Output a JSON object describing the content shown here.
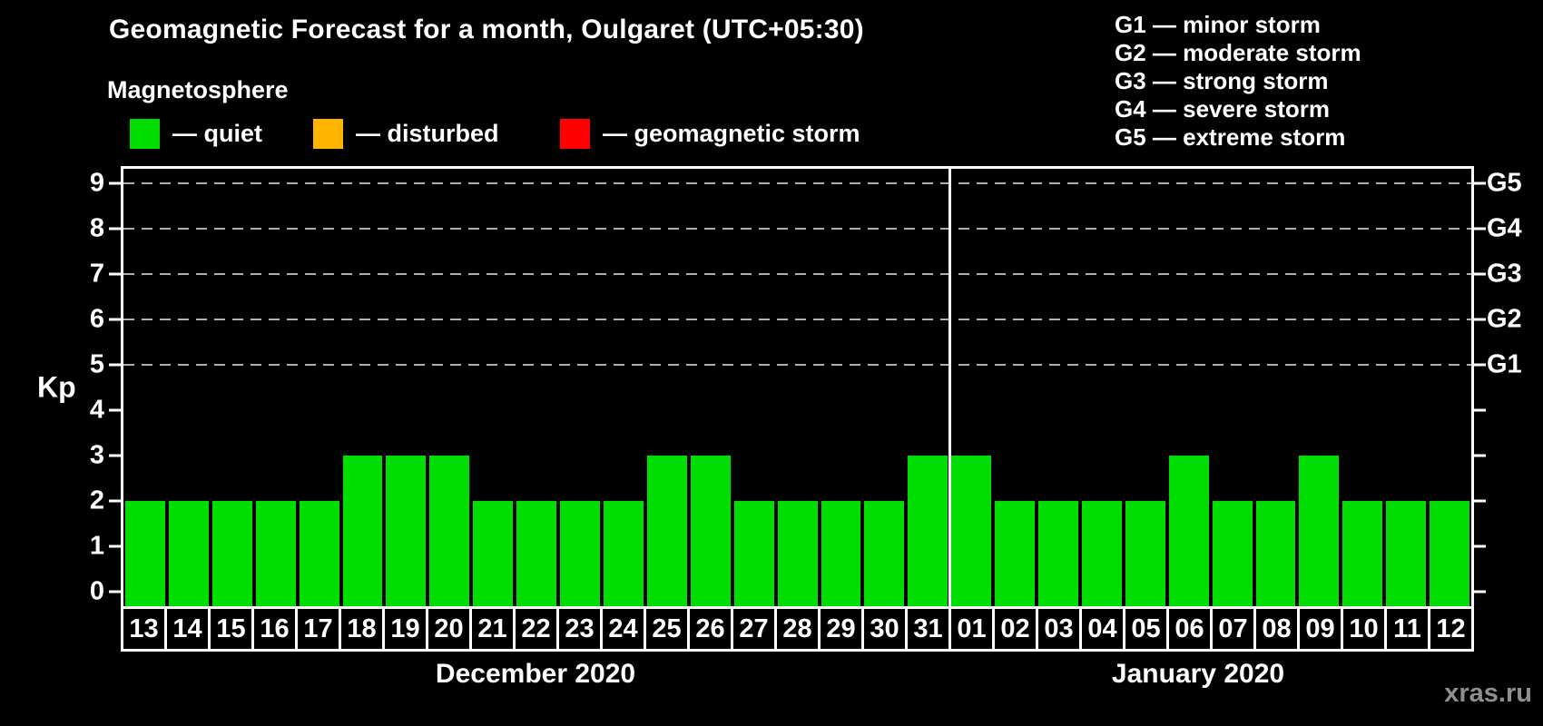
{
  "header": {
    "title": "Geomagnetic Forecast for a month, Oulgaret (UTC+05:30)",
    "subtitle": "Magnetosphere"
  },
  "legend": {
    "items": [
      {
        "name": "quiet",
        "label": "— quiet",
        "color": "#00dd00"
      },
      {
        "name": "disturbed",
        "label": "— disturbed",
        "color": "#ffb400"
      },
      {
        "name": "geomagnetic-storm",
        "label": "— geomagnetic storm",
        "color": "#ff0000"
      }
    ]
  },
  "g_legend": [
    "G1 — minor storm",
    "G2 — moderate storm",
    "G3 — strong storm",
    "G4 — severe storm",
    "G5 — extreme storm"
  ],
  "watermark": "xras.ru",
  "chart_data": {
    "type": "bar",
    "title": "Geomagnetic Forecast for a month, Oulgaret (UTC+05:30)",
    "ylabel": "Kp",
    "ylim": [
      0,
      9
    ],
    "y_ticks": [
      0,
      1,
      2,
      3,
      4,
      5,
      6,
      7,
      8,
      9
    ],
    "grid_levels": [
      5,
      6,
      7,
      8,
      9
    ],
    "grid_color": "#b0b0b0",
    "right_axis_labels": [
      {
        "kp": 9,
        "label": "G5"
      },
      {
        "kp": 8,
        "label": "G4"
      },
      {
        "kp": 7,
        "label": "G3"
      },
      {
        "kp": 6,
        "label": "G2"
      },
      {
        "kp": 5,
        "label": "G1"
      }
    ],
    "bar_status": "quiet",
    "bar_color": "#00dd00",
    "months": [
      {
        "label": "December 2020",
        "days": [
          "13",
          "14",
          "15",
          "16",
          "17",
          "18",
          "19",
          "20",
          "21",
          "22",
          "23",
          "24",
          "25",
          "26",
          "27",
          "28",
          "29",
          "30",
          "31"
        ],
        "values": [
          2,
          2,
          2,
          2,
          2,
          3,
          3,
          3,
          2,
          2,
          2,
          2,
          3,
          3,
          2,
          2,
          2,
          2,
          3
        ]
      },
      {
        "label": "January 2020",
        "days": [
          "01",
          "02",
          "03",
          "04",
          "05",
          "06",
          "07",
          "08",
          "09",
          "10",
          "11",
          "12"
        ],
        "values": [
          3,
          2,
          2,
          2,
          2,
          3,
          2,
          2,
          3,
          2,
          2,
          2
        ]
      }
    ]
  }
}
